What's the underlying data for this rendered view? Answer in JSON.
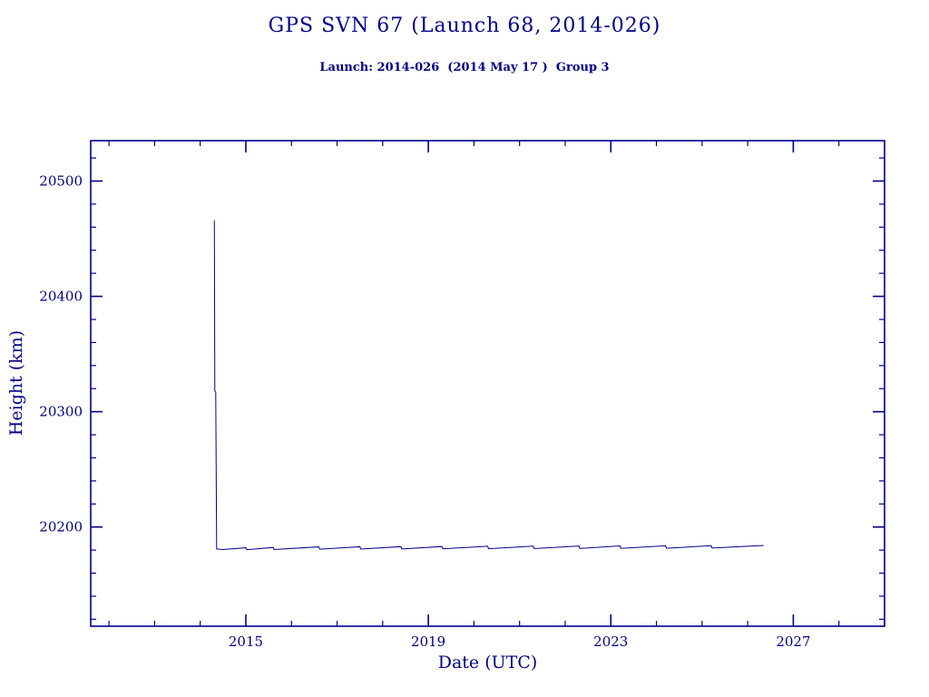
{
  "title": "GPS SVN 67 (Launch 68, 2014-026)",
  "subtitle": "Launch: 2014-026  (2014 May 17 )  Group 3",
  "colors": {
    "accent": "#00008B",
    "background": "#FFFFFF"
  },
  "chart_data": {
    "type": "line",
    "title": "GPS SVN 67 (Launch 68, 2014-026)",
    "subtitle": "Launch: 2014-026  (2014 May 17 )  Group 3",
    "xlabel": "Date (UTC)",
    "ylabel": "Height (km)",
    "xlim": [
      2011.6,
      2029.0
    ],
    "ylim": [
      20114,
      20535
    ],
    "x_major_ticks": [
      2015,
      2019,
      2023,
      2027
    ],
    "x_minor_step": 1,
    "y_major_ticks": [
      20200,
      20300,
      20400,
      20500
    ],
    "y_minor_step": 20,
    "grid": false,
    "legend": "none",
    "series": [
      {
        "name": "height",
        "color": "#00008B",
        "points": [
          [
            2014.31,
            20466
          ],
          [
            2014.32,
            20318
          ],
          [
            2014.34,
            20317
          ],
          [
            2014.36,
            20181
          ],
          [
            2014.5,
            20180.5
          ],
          [
            2015.0,
            20182.0
          ],
          [
            2015.02,
            20180.3
          ],
          [
            2015.6,
            20182.3
          ],
          [
            2015.62,
            20180.5
          ],
          [
            2016.6,
            20182.8
          ],
          [
            2016.62,
            20180.8
          ],
          [
            2017.5,
            20182.9
          ],
          [
            2017.52,
            20180.9
          ],
          [
            2018.4,
            20183.0
          ],
          [
            2018.42,
            20181.0
          ],
          [
            2019.3,
            20183.1
          ],
          [
            2019.32,
            20181.1
          ],
          [
            2020.3,
            20183.3
          ],
          [
            2020.32,
            20181.2
          ],
          [
            2021.3,
            20183.4
          ],
          [
            2021.32,
            20181.3
          ],
          [
            2022.3,
            20183.5
          ],
          [
            2022.32,
            20181.4
          ],
          [
            2023.2,
            20183.6
          ],
          [
            2023.22,
            20181.5
          ],
          [
            2024.2,
            20183.7
          ],
          [
            2024.22,
            20181.6
          ],
          [
            2025.2,
            20183.8
          ],
          [
            2025.22,
            20181.8
          ],
          [
            2026.35,
            20184.0
          ]
        ]
      }
    ]
  }
}
